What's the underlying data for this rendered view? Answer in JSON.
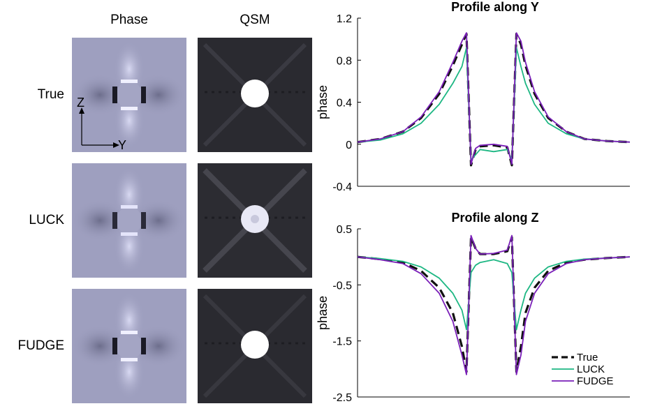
{
  "column_headers": [
    "Phase",
    "QSM"
  ],
  "row_labels": [
    "True",
    "LUCK",
    "FUDGE"
  ],
  "axis_indicator": {
    "vertical": "Z",
    "horizontal": "Y"
  },
  "colors": {
    "true": "#111111",
    "luck": "#1db783",
    "fudge": "#7a1fb8",
    "phase_bg": "#9e9fbf",
    "qsm_bg": "#2a2a30"
  },
  "chart_data": [
    {
      "type": "line",
      "title": "Profile along Y",
      "xlabel": "",
      "ylabel": "phase",
      "ylim": [
        -0.4,
        1.2
      ],
      "yticks": [
        "1.2",
        "0.8",
        "0.4",
        "0",
        "-0.4"
      ],
      "ytick_values": [
        1.2,
        0.8,
        0.4,
        0,
        -0.4
      ],
      "xlim": [
        0,
        60
      ],
      "series": [
        {
          "name": "True",
          "style": "dashed",
          "x": [
            0,
            5,
            10,
            14,
            18,
            21,
            23,
            24,
            25,
            26,
            27,
            30,
            33,
            34,
            35,
            36,
            37,
            39,
            42,
            46,
            50,
            55,
            60
          ],
          "y": [
            0.02,
            0.05,
            0.12,
            0.25,
            0.48,
            0.75,
            0.95,
            1.05,
            -0.2,
            -0.05,
            -0.02,
            -0.01,
            -0.03,
            -0.2,
            1.05,
            0.95,
            0.75,
            0.48,
            0.25,
            0.12,
            0.05,
            0.03,
            0.02
          ]
        },
        {
          "name": "LUCK",
          "style": "solid",
          "x": [
            0,
            5,
            10,
            14,
            18,
            21,
            23,
            24,
            25,
            26,
            27,
            30,
            33,
            34,
            35,
            36,
            37,
            39,
            42,
            46,
            50,
            55,
            60
          ],
          "y": [
            0.02,
            0.04,
            0.1,
            0.2,
            0.38,
            0.58,
            0.74,
            0.92,
            -0.15,
            -0.1,
            -0.05,
            -0.07,
            -0.05,
            -0.15,
            0.92,
            0.74,
            0.58,
            0.38,
            0.2,
            0.1,
            0.05,
            0.03,
            0.02
          ]
        },
        {
          "name": "FUDGE",
          "style": "solid",
          "x": [
            0,
            5,
            10,
            14,
            18,
            21,
            23,
            24,
            25,
            26,
            27,
            30,
            33,
            34,
            35,
            36,
            37,
            39,
            42,
            46,
            50,
            55,
            60
          ],
          "y": [
            0.02,
            0.05,
            0.12,
            0.26,
            0.5,
            0.78,
            0.98,
            1.06,
            -0.19,
            -0.04,
            -0.01,
            0.0,
            -0.02,
            -0.19,
            1.06,
            0.98,
            0.78,
            0.5,
            0.26,
            0.12,
            0.05,
            0.03,
            0.02
          ]
        }
      ]
    },
    {
      "type": "line",
      "title": "Profile along Z",
      "xlabel": "",
      "ylabel": "phase",
      "ylim": [
        -2.5,
        0.5
      ],
      "yticks": [
        "0.5",
        "-0.5",
        "-1.5",
        "-2.5"
      ],
      "ytick_values": [
        0.5,
        -0.5,
        -1.5,
        -2.5
      ],
      "xlim": [
        0,
        60
      ],
      "legend": {
        "position": "lower-right",
        "entries": [
          "True",
          "LUCK",
          "FUDGE"
        ]
      },
      "series": [
        {
          "name": "True",
          "style": "dashed",
          "x": [
            0,
            5,
            10,
            14,
            18,
            21,
            23,
            24,
            25,
            26,
            27,
            30,
            33,
            34,
            35,
            36,
            37,
            39,
            42,
            46,
            50,
            55,
            60
          ],
          "y": [
            0.0,
            -0.04,
            -0.1,
            -0.25,
            -0.55,
            -1.0,
            -1.6,
            -2.05,
            0.35,
            0.15,
            0.05,
            0.05,
            0.1,
            0.35,
            -2.05,
            -1.6,
            -1.0,
            -0.55,
            -0.25,
            -0.1,
            -0.05,
            -0.02,
            0.0
          ]
        },
        {
          "name": "LUCK",
          "style": "solid",
          "x": [
            0,
            5,
            10,
            14,
            18,
            21,
            23,
            24,
            25,
            26,
            27,
            30,
            33,
            34,
            35,
            36,
            37,
            39,
            42,
            46,
            50,
            55,
            60
          ],
          "y": [
            0.0,
            -0.03,
            -0.08,
            -0.18,
            -0.38,
            -0.65,
            -0.95,
            -1.3,
            -0.28,
            -0.15,
            -0.1,
            -0.05,
            -0.12,
            -0.28,
            -1.3,
            -0.95,
            -0.65,
            -0.38,
            -0.18,
            -0.08,
            -0.04,
            -0.02,
            0.0
          ]
        },
        {
          "name": "FUDGE",
          "style": "solid",
          "x": [
            0,
            5,
            10,
            14,
            18,
            21,
            23,
            24,
            25,
            26,
            27,
            30,
            33,
            34,
            35,
            36,
            37,
            39,
            42,
            46,
            50,
            55,
            60
          ],
          "y": [
            0.0,
            -0.05,
            -0.12,
            -0.3,
            -0.65,
            -1.15,
            -1.75,
            -2.1,
            0.38,
            0.15,
            0.05,
            0.06,
            0.12,
            0.38,
            -2.1,
            -1.75,
            -1.15,
            -0.65,
            -0.3,
            -0.12,
            -0.05,
            -0.02,
            0.0
          ]
        }
      ]
    }
  ]
}
